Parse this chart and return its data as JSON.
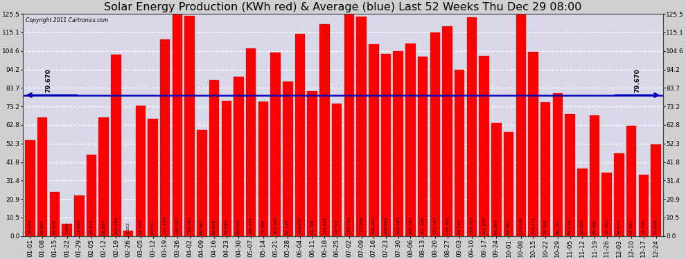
{
  "title": "Solar Energy Production (KWh red) & Average (blue) Last 52 Weeks Thu Dec 29 08:00",
  "copyright": "Copyright 2011 Cartronics.com",
  "bar_color": "#ff0000",
  "average_color": "#0000bb",
  "average_value": 79.67,
  "average_label": "79.670",
  "background_color": "#d0d0d0",
  "plot_bg_color": "#d8d8e8",
  "grid_color": "#ffffff",
  "ylim": [
    0.0,
    125.5
  ],
  "yticks": [
    0.0,
    10.5,
    20.9,
    31.4,
    41.8,
    52.3,
    62.8,
    73.2,
    83.7,
    94.2,
    104.6,
    115.1,
    125.5
  ],
  "x_labels": [
    "01-01",
    "01-08",
    "01-15",
    "01-22",
    "01-29",
    "02-05",
    "02-12",
    "02-19",
    "02-26",
    "03-05",
    "03-12",
    "03-19",
    "03-26",
    "04-02",
    "04-09",
    "04-16",
    "04-23",
    "04-30",
    "05-07",
    "05-14",
    "05-21",
    "05-28",
    "06-04",
    "06-11",
    "06-18",
    "06-25",
    "07-02",
    "07-09",
    "07-16",
    "07-23",
    "07-30",
    "08-06",
    "08-13",
    "08-20",
    "08-27",
    "09-03",
    "09-10",
    "09-17",
    "09-24",
    "10-01",
    "10-08",
    "10-15",
    "10-22",
    "10-29",
    "11-05",
    "11-12",
    "11-19",
    "11-26",
    "12-03",
    "12-10",
    "12-17",
    "12-24"
  ],
  "bar_values": [
    54.152,
    67.09,
    25.078,
    7.009,
    22.925,
    45.875,
    66.897,
    102.692,
    3.152,
    73.525,
    66.417,
    111.33,
    148.737,
    124.582,
    60.007,
    88.216,
    76.583,
    90.1,
    106.151,
    75.885,
    103.709,
    87.233,
    114.271,
    81.749,
    119.822,
    74.715,
    125.102,
    123.908,
    108.297,
    103.059,
    104.429,
    108.783,
    101.336,
    115.18,
    118.452,
    94.133,
    123.727,
    101.925,
    64.094,
    58.981,
    125.545,
    104.171,
    75.7,
    80.781,
    69.145,
    38.285,
    68.36,
    35.761,
    46.937,
    62.581,
    34.796,
    51.958
  ],
  "bar_value_labels": [
    "54.152",
    "67.090",
    "25.078",
    "7.009",
    "22.925",
    "45.875",
    "66.897",
    "102.692",
    "3.152",
    "73.525",
    "66.417",
    "111.330",
    "148.737",
    "124.582",
    "60.007",
    "88.216",
    "76.583",
    "90.100",
    "106.151",
    "75.885",
    "103.709",
    "87.233",
    "114.271",
    "81.749",
    "119.822",
    "74.715",
    "125.102",
    "123.908",
    "108.297",
    "103.059",
    "104.429",
    "108.783",
    "101.336",
    "115.180",
    "118.452",
    "94.133",
    "123.727",
    "101.925",
    "64.094",
    "58.981",
    "125.545",
    "104.171",
    "75.700",
    "80.781",
    "69.145",
    "38.285",
    "68.360",
    "35.761",
    "46.937",
    "62.581",
    "34.796",
    "51.958"
  ],
  "title_fontsize": 11.5,
  "tick_fontsize": 6.5,
  "label_fontsize": 4.5,
  "bar_width": 0.82
}
